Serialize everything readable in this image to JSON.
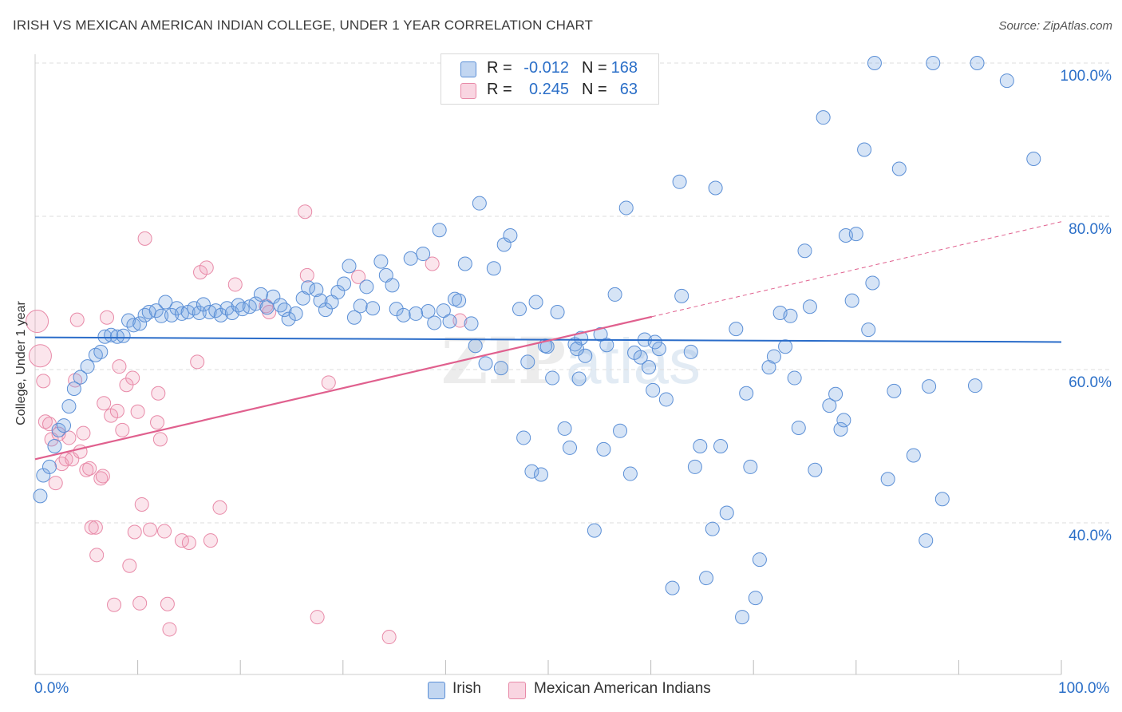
{
  "title": "IRISH VS MEXICAN AMERICAN INDIAN COLLEGE, UNDER 1 YEAR CORRELATION CHART",
  "source": "Source: ZipAtlas.com",
  "watermark": {
    "zip": "ZIP",
    "atlas": "atlas"
  },
  "colors": {
    "irish_fill": "rgba(120,165,225,0.30)",
    "irish_stroke": "#5b8fd6",
    "irish_line": "#2a6cc9",
    "mex_fill": "rgba(240,150,180,0.25)",
    "mex_stroke": "#e88aa8",
    "mex_line": "#e0608e",
    "tick_label": "#2b6fc8",
    "grid": "#dddddd"
  },
  "legend_top": [
    {
      "r_label": "R =",
      "r_value": "-0.012",
      "n_label": "N =",
      "n_value": "168"
    },
    {
      "r_label": "R =",
      "r_value": "0.245",
      "n_label": "N =",
      "n_value": "63"
    }
  ],
  "legend_bottom": [
    "Irish",
    "Mexican American Indians"
  ],
  "chart_data": {
    "type": "scatter",
    "title": "IRISH VS MEXICAN AMERICAN INDIAN COLLEGE, UNDER 1 YEAR CORRELATION CHART",
    "xlabel": "",
    "ylabel": "College, Under 1 year",
    "x_tick_labels": [
      "0.0%",
      "100.0%"
    ],
    "y_tick_labels": [
      "40.0%",
      "60.0%",
      "80.0%",
      "100.0%"
    ],
    "y_ticks": [
      40,
      60,
      80,
      100
    ],
    "xlim": [
      0,
      100
    ],
    "ylim": [
      20,
      102
    ],
    "grid": "horizontal dashed",
    "legend_position": "top-center",
    "series": [
      {
        "name": "Irish",
        "R": -0.012,
        "N": 168,
        "trend": {
          "x": [
            0,
            100
          ],
          "y": [
            64.2,
            63.6
          ]
        },
        "points": [
          [
            0.5,
            43.5
          ],
          [
            0.8,
            46.2
          ],
          [
            1.4,
            47.3
          ],
          [
            1.9,
            50.0
          ],
          [
            2.3,
            52.1
          ],
          [
            2.8,
            52.7
          ],
          [
            3.3,
            55.2
          ],
          [
            3.8,
            57.5
          ],
          [
            4.4,
            59.0
          ],
          [
            5.1,
            60.4
          ],
          [
            5.9,
            61.9
          ],
          [
            6.4,
            62.3
          ],
          [
            6.8,
            64.3
          ],
          [
            7.4,
            64.5
          ],
          [
            8.0,
            64.3
          ],
          [
            8.6,
            64.4
          ],
          [
            9.1,
            66.4
          ],
          [
            9.6,
            65.8
          ],
          [
            10.2,
            66.0
          ],
          [
            10.7,
            67.1
          ],
          [
            11.1,
            67.5
          ],
          [
            11.8,
            67.7
          ],
          [
            12.3,
            67.0
          ],
          [
            12.7,
            68.8
          ],
          [
            13.3,
            67.1
          ],
          [
            13.8,
            68.0
          ],
          [
            14.3,
            67.3
          ],
          [
            14.9,
            67.5
          ],
          [
            15.5,
            68.0
          ],
          [
            16.0,
            67.4
          ],
          [
            16.4,
            68.5
          ],
          [
            17.0,
            67.5
          ],
          [
            17.6,
            67.7
          ],
          [
            18.1,
            67.1
          ],
          [
            18.7,
            68.0
          ],
          [
            19.2,
            67.4
          ],
          [
            19.8,
            68.4
          ],
          [
            20.2,
            67.9
          ],
          [
            20.9,
            68.2
          ],
          [
            21.5,
            68.6
          ],
          [
            22.0,
            69.8
          ],
          [
            22.6,
            68.1
          ],
          [
            23.2,
            69.5
          ],
          [
            23.9,
            68.4
          ],
          [
            24.3,
            67.8
          ],
          [
            24.7,
            66.6
          ],
          [
            25.4,
            67.3
          ],
          [
            26.1,
            69.3
          ],
          [
            26.6,
            70.7
          ],
          [
            27.4,
            70.4
          ],
          [
            27.8,
            69.0
          ],
          [
            28.3,
            67.8
          ],
          [
            28.9,
            68.8
          ],
          [
            29.5,
            70.1
          ],
          [
            30.1,
            71.2
          ],
          [
            30.6,
            73.5
          ],
          [
            31.1,
            66.8
          ],
          [
            31.7,
            68.3
          ],
          [
            32.3,
            70.8
          ],
          [
            32.9,
            68.0
          ],
          [
            33.7,
            74.1
          ],
          [
            34.2,
            72.3
          ],
          [
            34.8,
            71.0
          ],
          [
            35.2,
            67.9
          ],
          [
            35.9,
            67.1
          ],
          [
            36.6,
            74.5
          ],
          [
            37.1,
            67.3
          ],
          [
            37.8,
            75.1
          ],
          [
            38.3,
            67.6
          ],
          [
            38.9,
            66.1
          ],
          [
            39.4,
            78.2
          ],
          [
            39.8,
            67.7
          ],
          [
            40.4,
            66.3
          ],
          [
            40.9,
            69.2
          ],
          [
            41.3,
            69.0
          ],
          [
            41.9,
            73.8
          ],
          [
            42.5,
            66.0
          ],
          [
            42.9,
            63.1
          ],
          [
            43.3,
            81.7
          ],
          [
            43.9,
            60.8
          ],
          [
            44.7,
            73.2
          ],
          [
            45.4,
            60.2
          ],
          [
            45.7,
            76.3
          ],
          [
            46.3,
            77.5
          ],
          [
            47.2,
            67.9
          ],
          [
            47.6,
            51.1
          ],
          [
            48.0,
            61.0
          ],
          [
            48.4,
            46.7
          ],
          [
            48.8,
            68.8
          ],
          [
            49.3,
            46.3
          ],
          [
            49.7,
            63.1
          ],
          [
            50.4,
            58.9
          ],
          [
            50.9,
            67.5
          ],
          [
            51.6,
            52.3
          ],
          [
            52.1,
            49.8
          ],
          [
            52.6,
            63.3
          ],
          [
            53.0,
            58.8
          ],
          [
            53.2,
            64.1
          ],
          [
            53.6,
            61.8
          ],
          [
            54.5,
            39.0
          ],
          [
            55.1,
            64.6
          ],
          [
            55.4,
            49.6
          ],
          [
            55.7,
            63.2
          ],
          [
            56.5,
            69.8
          ],
          [
            57.0,
            52.0
          ],
          [
            57.6,
            81.1
          ],
          [
            58.0,
            46.4
          ],
          [
            58.4,
            62.2
          ],
          [
            59.0,
            61.6
          ],
          [
            59.4,
            63.9
          ],
          [
            59.8,
            60.3
          ],
          [
            60.2,
            57.3
          ],
          [
            60.8,
            62.7
          ],
          [
            61.5,
            56.1
          ],
          [
            62.1,
            31.5
          ],
          [
            62.8,
            84.5
          ],
          [
            63.0,
            69.6
          ],
          [
            63.9,
            62.3
          ],
          [
            64.3,
            47.3
          ],
          [
            64.8,
            50.0
          ],
          [
            65.4,
            32.8
          ],
          [
            66.0,
            39.2
          ],
          [
            66.3,
            83.7
          ],
          [
            66.8,
            50.0
          ],
          [
            67.4,
            41.3
          ],
          [
            68.3,
            65.3
          ],
          [
            68.9,
            27.7
          ],
          [
            69.3,
            56.9
          ],
          [
            69.7,
            47.3
          ],
          [
            70.2,
            30.2
          ],
          [
            70.6,
            35.2
          ],
          [
            71.5,
            60.3
          ],
          [
            72.0,
            61.7
          ],
          [
            72.6,
            67.4
          ],
          [
            73.1,
            63.0
          ],
          [
            73.6,
            67.0
          ],
          [
            74.0,
            58.9
          ],
          [
            74.4,
            52.4
          ],
          [
            75.0,
            75.5
          ],
          [
            75.5,
            68.2
          ],
          [
            76.0,
            46.9
          ],
          [
            76.8,
            92.9
          ],
          [
            77.4,
            55.3
          ],
          [
            78.0,
            56.8
          ],
          [
            78.5,
            52.2
          ],
          [
            78.8,
            53.4
          ],
          [
            79.0,
            77.5
          ],
          [
            79.6,
            69.0
          ],
          [
            80.0,
            77.7
          ],
          [
            80.8,
            88.7
          ],
          [
            81.2,
            65.2
          ],
          [
            81.6,
            71.3
          ],
          [
            81.8,
            100.0
          ],
          [
            83.1,
            45.7
          ],
          [
            83.7,
            57.2
          ],
          [
            84.2,
            86.2
          ],
          [
            85.6,
            48.8
          ],
          [
            86.8,
            37.7
          ],
          [
            87.1,
            57.8
          ],
          [
            87.5,
            100.0
          ],
          [
            88.4,
            43.1
          ],
          [
            91.6,
            57.9
          ],
          [
            91.8,
            100.0
          ],
          [
            94.7,
            97.7
          ],
          [
            97.3,
            87.5
          ],
          [
            49.9,
            63.0
          ],
          [
            60.4,
            63.6
          ],
          [
            52.8,
            62.7
          ]
        ]
      },
      {
        "name": "Mexican American Indians",
        "R": 0.245,
        "N": 63,
        "trend_solid": {
          "x": [
            0,
            60.1
          ],
          "y": [
            48.3,
            66.9
          ]
        },
        "trend_dashed": {
          "x": [
            60.1,
            100
          ],
          "y": [
            66.9,
            79.3
          ]
        },
        "points": [
          [
            0.2,
            66.3
          ],
          [
            0.5,
            61.8
          ],
          [
            0.8,
            58.5
          ],
          [
            1.0,
            53.2
          ],
          [
            1.4,
            52.9
          ],
          [
            1.6,
            50.9
          ],
          [
            2.0,
            45.2
          ],
          [
            2.3,
            51.6
          ],
          [
            2.6,
            47.7
          ],
          [
            3.0,
            48.3
          ],
          [
            3.3,
            51.1
          ],
          [
            3.6,
            48.3
          ],
          [
            3.9,
            58.6
          ],
          [
            4.1,
            66.5
          ],
          [
            4.4,
            49.3
          ],
          [
            4.7,
            51.7
          ],
          [
            5.0,
            46.9
          ],
          [
            5.3,
            47.1
          ],
          [
            5.5,
            39.4
          ],
          [
            5.9,
            39.4
          ],
          [
            6.0,
            35.8
          ],
          [
            6.4,
            45.8
          ],
          [
            6.6,
            46.1
          ],
          [
            6.7,
            55.6
          ],
          [
            7.0,
            66.8
          ],
          [
            7.4,
            54.0
          ],
          [
            7.7,
            29.3
          ],
          [
            8.0,
            54.6
          ],
          [
            8.2,
            60.4
          ],
          [
            8.5,
            52.1
          ],
          [
            8.9,
            58.0
          ],
          [
            9.2,
            34.4
          ],
          [
            9.5,
            58.9
          ],
          [
            9.7,
            38.8
          ],
          [
            10.0,
            54.5
          ],
          [
            10.2,
            29.5
          ],
          [
            10.4,
            42.4
          ],
          [
            10.7,
            77.1
          ],
          [
            11.2,
            39.1
          ],
          [
            11.9,
            53.1
          ],
          [
            12.0,
            56.9
          ],
          [
            12.2,
            50.9
          ],
          [
            12.6,
            38.9
          ],
          [
            12.9,
            29.4
          ],
          [
            13.1,
            26.1
          ],
          [
            14.3,
            37.7
          ],
          [
            15.0,
            37.4
          ],
          [
            15.8,
            61.0
          ],
          [
            16.1,
            72.7
          ],
          [
            16.7,
            73.3
          ],
          [
            17.1,
            37.7
          ],
          [
            18.0,
            42.0
          ],
          [
            19.5,
            71.1
          ],
          [
            22.5,
            68.3
          ],
          [
            22.8,
            67.5
          ],
          [
            26.3,
            80.6
          ],
          [
            26.5,
            72.3
          ],
          [
            27.5,
            27.7
          ],
          [
            28.6,
            58.3
          ],
          [
            31.5,
            72.1
          ],
          [
            34.5,
            25.1
          ],
          [
            38.7,
            73.8
          ],
          [
            41.4,
            66.4
          ]
        ]
      }
    ]
  }
}
